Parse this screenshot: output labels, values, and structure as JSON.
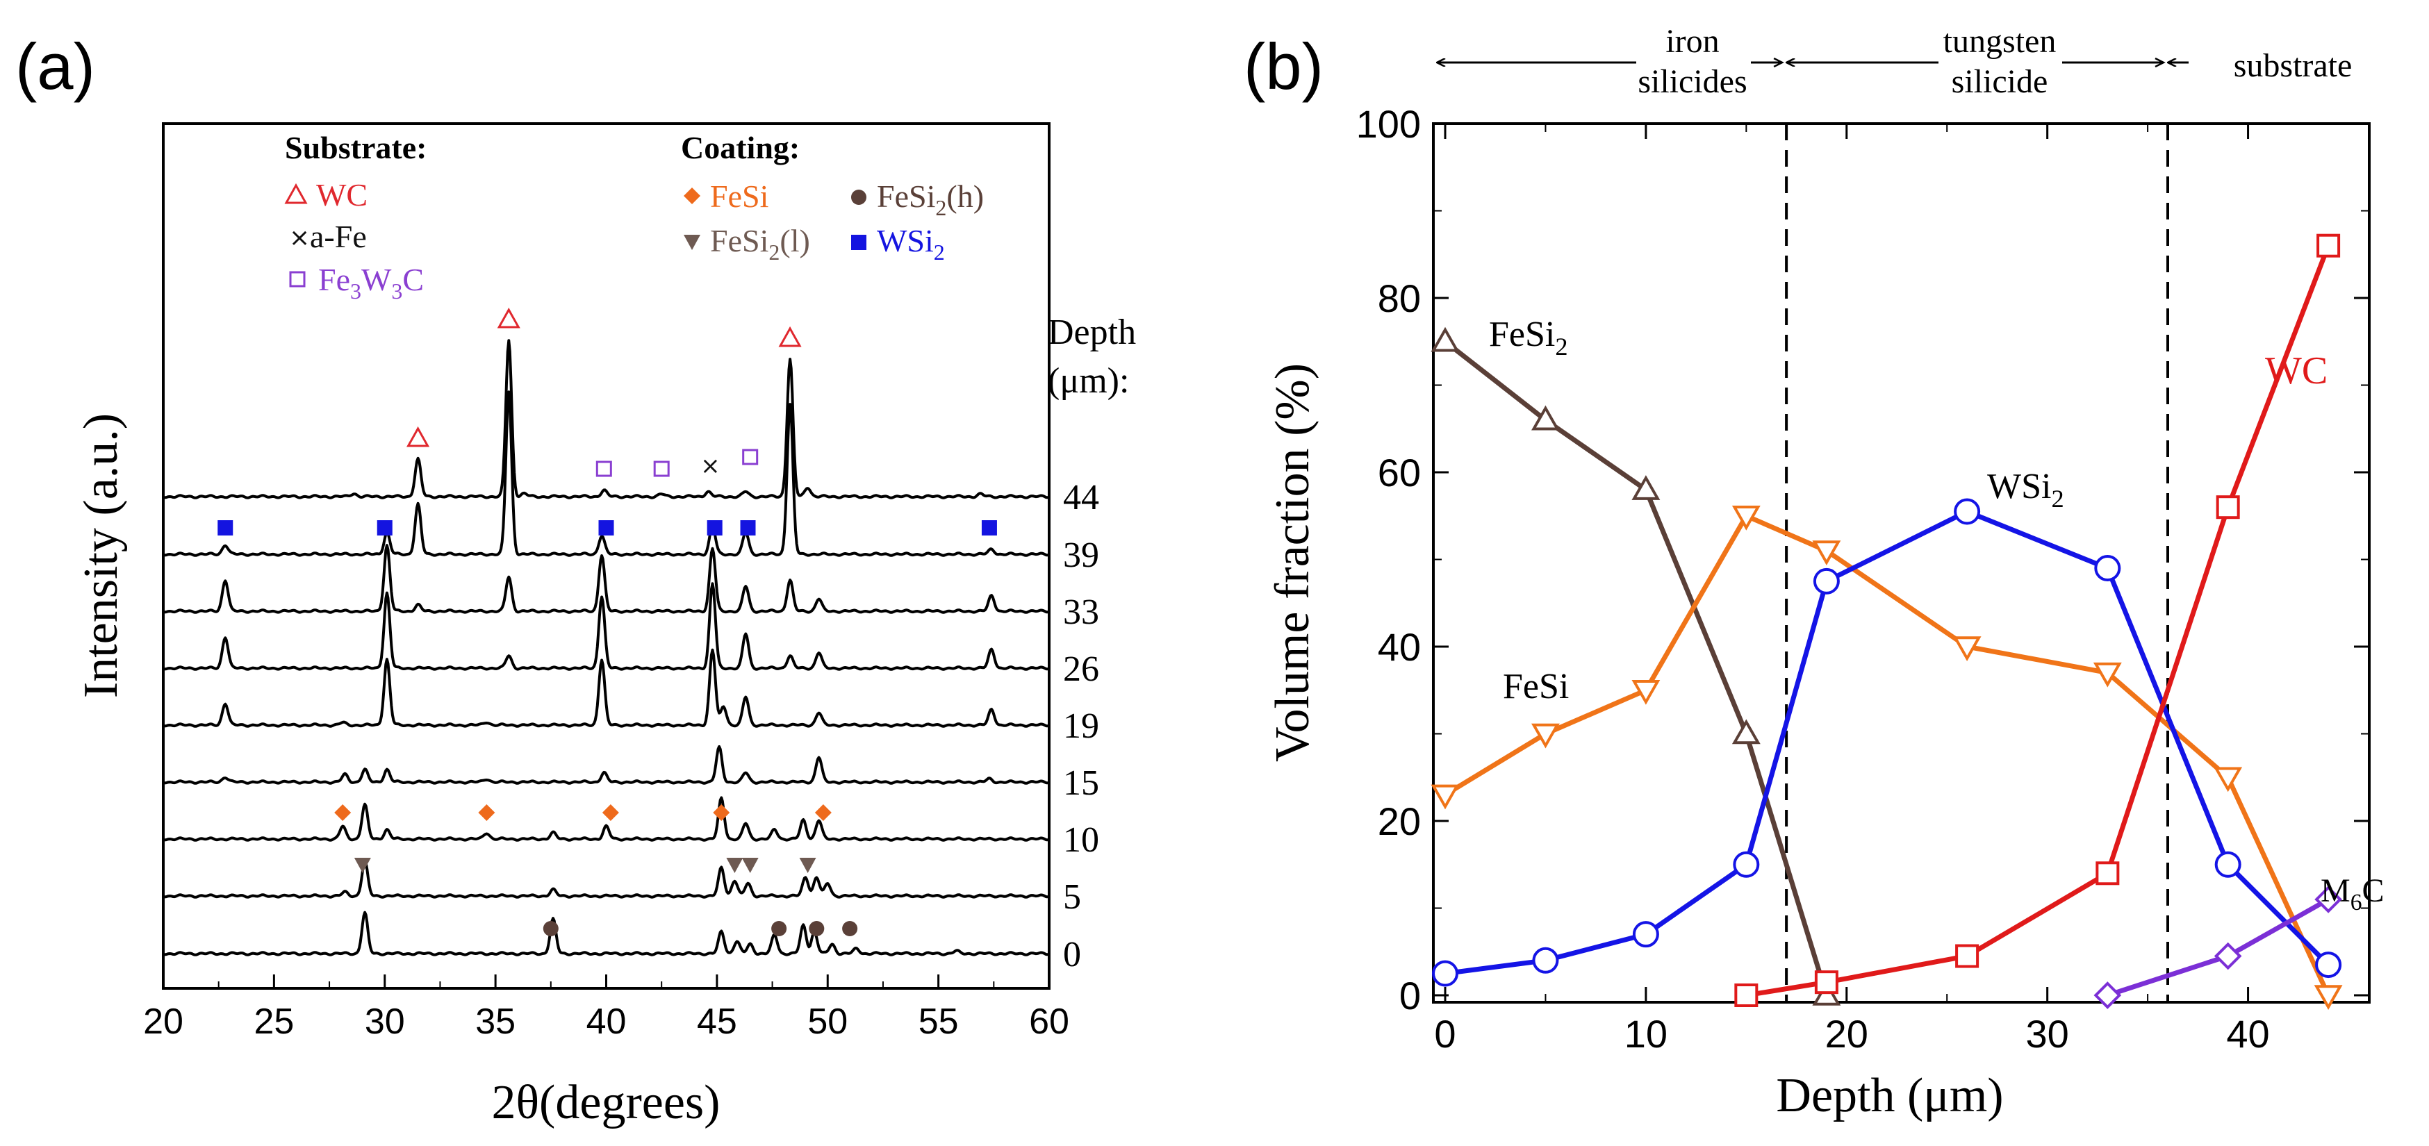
{
  "chart_data": [
    {
      "panel": "(a)",
      "type": "line",
      "xlabel": "2θ(degrees)",
      "ylabel": "Intensity (a.u.)",
      "xlim": [
        20,
        60
      ],
      "xticks": [
        20,
        25,
        30,
        35,
        40,
        45,
        50,
        55,
        60
      ],
      "depth_title": [
        "Depth",
        "(μm):"
      ],
      "depths": [
        "44",
        "39",
        "33",
        "26",
        "19",
        "15",
        "10",
        "5",
        "0"
      ],
      "legend": {
        "substrate_title": "Substrate:",
        "coating_title": "Coating:",
        "WC": {
          "text": "WC",
          "color": "#e0282e"
        },
        "aFe": {
          "text": "a-Fe",
          "color": "#111111"
        },
        "Fe3W3C": {
          "base": "Fe",
          "sub1": "3",
          "mid": "W",
          "sub2": "3",
          "end": "C",
          "color": "#8a3fd1"
        },
        "FeSi": {
          "text": "FeSi",
          "color": "#ee6a1c"
        },
        "FeSi2h": {
          "base": "FeSi",
          "sub": "2",
          "end": "(h)",
          "color": "#5a4038"
        },
        "FeSi2l": {
          "base": "FeSi",
          "sub": "2",
          "end": "(l)",
          "color": "#6e5a52"
        },
        "WSi2": {
          "base": "WSi",
          "sub": "2",
          "color": "#1414e0"
        }
      },
      "patterns": [
        {
          "depth": "44",
          "peaks": [
            [
              28.6,
              0.05
            ],
            [
              31.5,
              0.6
            ],
            [
              35.6,
              2.5
            ],
            [
              36.3,
              0.05
            ],
            [
              39.9,
              0.1
            ],
            [
              42.5,
              0.04
            ],
            [
              44.6,
              0.08
            ],
            [
              46.3,
              0.08
            ],
            [
              48.3,
              2.2
            ],
            [
              49.1,
              0.15
            ],
            [
              56.9,
              0.04
            ]
          ]
        },
        {
          "depth": "39",
          "peaks": [
            [
              22.8,
              0.15
            ],
            [
              30.1,
              0.35
            ],
            [
              31.5,
              0.8
            ],
            [
              35.6,
              2.6
            ],
            [
              39.8,
              0.3
            ],
            [
              44.8,
              0.45
            ],
            [
              46.3,
              0.35
            ],
            [
              48.3,
              2.4
            ],
            [
              57.4,
              0.08
            ]
          ]
        },
        {
          "depth": "33",
          "peaks": [
            [
              22.8,
              0.5
            ],
            [
              30.1,
              1.05
            ],
            [
              31.5,
              0.1
            ],
            [
              35.6,
              0.55
            ],
            [
              39.8,
              0.9
            ],
            [
              44.8,
              1.0
            ],
            [
              46.3,
              0.4
            ],
            [
              48.3,
              0.5
            ],
            [
              49.6,
              0.2
            ],
            [
              57.4,
              0.25
            ]
          ]
        },
        {
          "depth": "26",
          "peaks": [
            [
              22.8,
              0.5
            ],
            [
              30.1,
              1.2
            ],
            [
              35.6,
              0.2
            ],
            [
              39.8,
              1.15
            ],
            [
              44.8,
              1.35
            ],
            [
              46.3,
              0.55
            ],
            [
              48.3,
              0.2
            ],
            [
              49.6,
              0.25
            ],
            [
              57.4,
              0.3
            ]
          ]
        },
        {
          "depth": "19",
          "peaks": [
            [
              22.8,
              0.35
            ],
            [
              28.1,
              0.04
            ],
            [
              30.1,
              1.05
            ],
            [
              34.6,
              0.05
            ],
            [
              39.8,
              1.05
            ],
            [
              44.8,
              1.2
            ],
            [
              45.3,
              0.3
            ],
            [
              46.3,
              0.45
            ],
            [
              49.6,
              0.2
            ],
            [
              57.4,
              0.25
            ]
          ]
        },
        {
          "depth": "15",
          "peaks": [
            [
              22.8,
              0.08
            ],
            [
              28.2,
              0.12
            ],
            [
              29.1,
              0.2
            ],
            [
              30.1,
              0.2
            ],
            [
              34.6,
              0.05
            ],
            [
              39.9,
              0.15
            ],
            [
              45.1,
              0.55
            ],
            [
              46.3,
              0.15
            ],
            [
              49.6,
              0.4
            ],
            [
              57.3,
              0.05
            ]
          ]
        },
        {
          "depth": "10",
          "peaks": [
            [
              28.1,
              0.2
            ],
            [
              29.1,
              0.55
            ],
            [
              30.1,
              0.15
            ],
            [
              34.6,
              0.1
            ],
            [
              37.6,
              0.1
            ],
            [
              40.0,
              0.2
            ],
            [
              45.2,
              0.65
            ],
            [
              46.3,
              0.25
            ],
            [
              47.6,
              0.15
            ],
            [
              48.9,
              0.3
            ],
            [
              49.6,
              0.3
            ]
          ]
        },
        {
          "depth": "5",
          "peaks": [
            [
              28.2,
              0.06
            ],
            [
              29.1,
              0.55
            ],
            [
              37.6,
              0.1
            ],
            [
              45.2,
              0.45
            ],
            [
              45.8,
              0.25
            ],
            [
              46.4,
              0.2
            ],
            [
              49.0,
              0.3
            ],
            [
              49.5,
              0.3
            ],
            [
              50.0,
              0.2
            ]
          ]
        },
        {
          "depth": "0",
          "peaks": [
            [
              29.1,
              0.65
            ],
            [
              37.6,
              0.55
            ],
            [
              45.2,
              0.35
            ],
            [
              45.9,
              0.2
            ],
            [
              46.5,
              0.15
            ],
            [
              47.6,
              0.3
            ],
            [
              48.9,
              0.45
            ],
            [
              49.4,
              0.35
            ],
            [
              50.2,
              0.15
            ],
            [
              51.3,
              0.08
            ],
            [
              55.8,
              0.04
            ]
          ]
        }
      ],
      "markers": {
        "WC": [
          [
            31.5,
            "44"
          ],
          [
            35.6,
            "44"
          ],
          [
            48.3,
            "44"
          ]
        ],
        "Fe3W3C": [
          [
            39.9,
            "44"
          ],
          [
            42.5,
            "44"
          ],
          [
            46.5,
            "44"
          ]
        ],
        "aFe": [
          [
            44.7,
            "44"
          ]
        ],
        "WSi2": [
          [
            22.8,
            "39"
          ],
          [
            30.0,
            "39"
          ],
          [
            40.0,
            "39"
          ],
          [
            44.9,
            "39"
          ],
          [
            46.4,
            "39"
          ],
          [
            57.3,
            "39"
          ]
        ],
        "FeSi": [
          [
            28.1,
            "10"
          ],
          [
            34.6,
            "10"
          ],
          [
            40.2,
            "10"
          ],
          [
            45.2,
            "10"
          ],
          [
            49.8,
            "10"
          ]
        ],
        "FeSi2l": [
          [
            29.0,
            "5"
          ],
          [
            45.8,
            "5"
          ],
          [
            46.5,
            "5"
          ],
          [
            49.1,
            "5"
          ]
        ],
        "FeSi2h": [
          [
            37.5,
            "0"
          ],
          [
            47.8,
            "0"
          ],
          [
            49.5,
            "0"
          ],
          [
            51.0,
            "0"
          ]
        ]
      }
    },
    {
      "panel": "(b)",
      "type": "line",
      "xlabel": "Depth (μm)",
      "ylabel": "Volume fraction (%)",
      "xlim": [
        0,
        45
      ],
      "ylim": [
        0,
        100
      ],
      "xticks": [
        0,
        10,
        20,
        30,
        40
      ],
      "yticks": [
        0,
        20,
        40,
        60,
        80,
        100
      ],
      "dividers": [
        17,
        36
      ],
      "regions": [
        {
          "lines": [
            "iron",
            "silicides"
          ]
        },
        {
          "lines": [
            "tungsten",
            "silicide"
          ]
        },
        {
          "lines": [
            "substrate"
          ]
        }
      ],
      "series": [
        {
          "name": "FeSi2",
          "label_base": "FeSi",
          "label_sub": "2",
          "color": "#5a3f37",
          "marker": "triangle-up",
          "x": [
            0,
            5,
            10,
            15,
            19
          ],
          "y": [
            75,
            66,
            58,
            30,
            0
          ]
        },
        {
          "name": "FeSi",
          "label_base": "FeSi",
          "label_sub": "",
          "color": "#f07418",
          "marker": "triangle-down",
          "x": [
            0,
            5,
            10,
            15,
            19,
            26,
            33,
            39,
            44
          ],
          "y": [
            23,
            30,
            35,
            55,
            51,
            40,
            37,
            25,
            0
          ]
        },
        {
          "name": "WSi2",
          "label_base": "WSi",
          "label_sub": "2",
          "color": "#1414e6",
          "marker": "circle",
          "x": [
            0,
            5,
            10,
            15,
            19,
            26,
            33,
            39,
            44
          ],
          "y": [
            2.5,
            4,
            7,
            15,
            47.5,
            55.5,
            49,
            15,
            3.5
          ]
        },
        {
          "name": "WC",
          "label_base": "WC",
          "label_sub": "",
          "color": "#e01a1a",
          "marker": "square",
          "x": [
            15,
            19,
            26,
            33,
            39,
            44
          ],
          "y": [
            0,
            1.5,
            4.5,
            14,
            56,
            86
          ]
        },
        {
          "name": "M6C",
          "label_base": "M",
          "label_sub": "6",
          "label_end": "C",
          "color": "#7b2fd6",
          "marker": "diamond",
          "x": [
            33,
            39,
            44
          ],
          "y": [
            0,
            4.5,
            11
          ]
        }
      ]
    }
  ]
}
